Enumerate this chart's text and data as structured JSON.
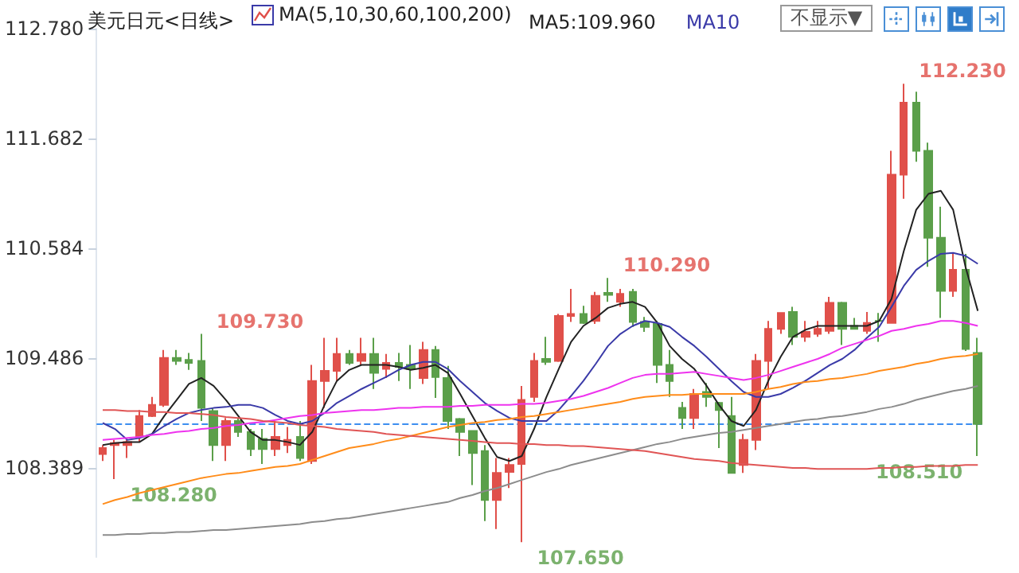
{
  "chart_data": {
    "type": "candlestick",
    "title": "美元日元<日线>",
    "legend_title": "MA(5,10,30,60,100,200)",
    "legend": "top",
    "grid": false,
    "tick_labels": "y",
    "categories": [
      null,
      null,
      null,
      null,
      null,
      null,
      null,
      null,
      null,
      null,
      null,
      null,
      null,
      null,
      null,
      null,
      null,
      null,
      null,
      null,
      null,
      null,
      null,
      null,
      null,
      null,
      null,
      null,
      null,
      null,
      null,
      null,
      null,
      null,
      null,
      null,
      null,
      null,
      null,
      null,
      null,
      null,
      null,
      null,
      null,
      null,
      null,
      null,
      null,
      null,
      null,
      null,
      null,
      null,
      null,
      null,
      null,
      null,
      null,
      null,
      null,
      null,
      null,
      null,
      null,
      null,
      null,
      null,
      null,
      null,
      null,
      null
    ],
    "ylim": [
      107.5,
      112.78
    ],
    "yticks": [
      {
        "value": 108.389,
        "label": "108.389"
      },
      {
        "value": 109.486,
        "label": "109.486"
      },
      {
        "value": 110.584,
        "label": "110.584"
      },
      {
        "value": 111.682,
        "label": "111.682"
      },
      {
        "value": 112.78,
        "label": "112.780"
      }
    ],
    "colors": [
      "#e0504a",
      "#e0504a",
      "#e0504a",
      "#e0504a",
      "#e0504a",
      "#e0504a",
      "#5b9f4a",
      "#5b9f4a",
      "#5b9f4a",
      "#5b9f4a",
      "#e0504a",
      "#5b9f4a",
      "#5b9f4a",
      "#5b9f4a",
      "#e0504a",
      "#e0504a",
      "#5b9f4a",
      "#e0504a",
      "#e0504a",
      "#e0504a",
      "#5b9f4a",
      "#e0504a",
      "#5b9f4a",
      "#e0504a",
      "#5b9f4a",
      "#5b9f4a",
      "#e0504a",
      "#5b9f4a",
      "#5b9f4a",
      "#5b9f4a",
      "#5b9f4a",
      "#5b9f4a",
      "#e0504a",
      "#e0504a",
      "#e0504a",
      "#e0504a",
      "#5b9f4a",
      "#e0504a",
      "#e0504a",
      "#5b9f4a",
      "#e0504a",
      "#5b9f4a",
      "#e0504a",
      "#5b9f4a",
      "#5b9f4a",
      "#5b9f4a",
      "#5b9f4a",
      "#5b9f4a",
      "#e0504a",
      "#5b9f4a",
      "#5b9f4a",
      "#5b9f4a",
      "#e0504a",
      "#e0504a",
      "#e0504a",
      "#e0504a",
      "#5b9f4a",
      "#e0504a",
      "#e0504a",
      "#e0504a",
      "#5b9f4a",
      "#5b9f4a",
      "#e0504a",
      "#5b9f4a",
      "#e0504a",
      "#e0504a",
      "#5b9f4a",
      "#5b9f4a",
      "#5b9f4a",
      "#e0504a",
      "#5b9f4a",
      "#5b9f4a"
    ],
    "ohlc": [
      [
        108.53,
        108.62,
        108.46,
        108.59
      ],
      [
        108.62,
        108.67,
        108.28,
        108.64
      ],
      [
        108.62,
        108.67,
        108.49,
        108.65
      ],
      [
        108.7,
        108.97,
        108.65,
        108.91
      ],
      [
        108.91,
        109.1,
        108.9,
        109.02
      ],
      [
        109.02,
        109.57,
        109.0,
        109.49
      ],
      [
        109.49,
        109.57,
        109.42,
        109.46
      ],
      [
        109.47,
        109.54,
        109.37,
        109.44
      ],
      [
        109.46,
        109.73,
        108.86,
        108.99
      ],
      [
        108.96,
        108.99,
        108.46,
        108.62
      ],
      [
        108.62,
        108.89,
        108.46,
        108.86
      ],
      [
        108.86,
        108.89,
        108.7,
        108.75
      ],
      [
        108.75,
        108.78,
        108.51,
        108.58
      ],
      [
        108.68,
        108.78,
        108.43,
        108.58
      ],
      [
        108.58,
        108.86,
        108.51,
        108.7
      ],
      [
        108.62,
        108.8,
        108.54,
        108.67
      ],
      [
        108.7,
        108.86,
        108.46,
        108.49
      ],
      [
        108.46,
        109.42,
        108.43,
        109.26
      ],
      [
        109.26,
        109.69,
        108.99,
        109.36
      ],
      [
        109.36,
        109.69,
        109.26,
        109.53
      ],
      [
        109.53,
        109.57,
        109.42,
        109.44
      ],
      [
        109.46,
        109.69,
        109.42,
        109.53
      ],
      [
        109.53,
        109.69,
        109.18,
        109.34
      ],
      [
        109.38,
        109.53,
        109.29,
        109.44
      ],
      [
        109.44,
        109.54,
        109.26,
        109.4
      ],
      [
        109.42,
        109.62,
        109.18,
        109.38
      ],
      [
        109.29,
        109.65,
        109.23,
        109.57
      ],
      [
        109.57,
        109.61,
        109.09,
        109.3
      ],
      [
        109.29,
        109.41,
        108.78,
        108.86
      ],
      [
        108.88,
        108.89,
        108.51,
        108.75
      ],
      [
        108.76,
        108.76,
        108.22,
        108.54
      ],
      [
        108.56,
        108.62,
        107.86,
        108.07
      ],
      [
        108.07,
        108.49,
        107.78,
        108.34
      ],
      [
        108.35,
        108.49,
        108.19,
        108.42
      ],
      [
        108.43,
        109.21,
        107.65,
        109.07
      ],
      [
        109.1,
        109.54,
        109.05,
        109.46
      ],
      [
        109.48,
        109.7,
        109.42,
        109.45
      ],
      [
        109.46,
        109.93,
        109.45,
        109.91
      ],
      [
        109.91,
        110.18,
        109.85,
        109.93
      ],
      [
        109.93,
        110.01,
        109.83,
        109.84
      ],
      [
        109.86,
        110.15,
        109.83,
        110.11
      ],
      [
        110.14,
        110.29,
        110.05,
        110.12
      ],
      [
        110.05,
        110.18,
        110.0,
        110.13
      ],
      [
        110.15,
        110.18,
        109.8,
        109.85
      ],
      [
        109.85,
        109.9,
        109.75,
        109.8
      ],
      [
        109.83,
        109.86,
        109.24,
        109.42
      ],
      [
        109.42,
        109.57,
        109.1,
        109.26
      ],
      [
        108.99,
        109.05,
        108.78,
        108.89
      ],
      [
        108.89,
        109.18,
        108.78,
        109.13
      ],
      [
        109.15,
        109.24,
        109.0,
        109.1
      ],
      [
        109.04,
        109.05,
        108.59,
        108.97
      ],
      [
        108.91,
        109.1,
        108.34,
        108.34
      ],
      [
        108.42,
        108.73,
        108.34,
        108.67
      ],
      [
        108.67,
        109.53,
        108.57,
        109.46
      ],
      [
        109.46,
        109.86,
        109.18,
        109.78
      ],
      [
        109.78,
        109.94,
        109.73,
        109.94
      ],
      [
        109.95,
        110.0,
        109.62,
        109.7
      ],
      [
        109.7,
        109.86,
        109.65,
        109.75
      ],
      [
        109.73,
        109.86,
        109.7,
        109.78
      ],
      [
        109.76,
        110.1,
        109.73,
        110.04
      ],
      [
        110.04,
        110.05,
        109.62,
        109.78
      ],
      [
        109.81,
        109.89,
        109.78,
        109.78
      ],
      [
        109.76,
        109.95,
        109.73,
        109.84
      ],
      [
        109.86,
        109.94,
        109.65,
        109.86
      ],
      [
        109.84,
        111.56,
        109.84,
        111.32
      ],
      [
        111.32,
        112.23,
        111.08,
        112.04
      ],
      [
        112.04,
        112.15,
        111.45,
        111.56
      ],
      [
        111.56,
        111.64,
        110.4,
        110.69
      ],
      [
        110.69,
        111.0,
        109.89,
        110.16
      ],
      [
        110.16,
        110.53,
        110.1,
        110.37
      ],
      [
        110.37,
        110.53,
        109.56,
        109.58
      ],
      [
        109.54,
        109.69,
        108.51,
        108.83
      ]
    ],
    "series": [
      {
        "type": "line",
        "name": "MA5:109.960",
        "color": "#222222",
        "values": [
          108.62,
          108.64,
          108.65,
          108.65,
          108.73,
          108.91,
          109.07,
          109.23,
          109.29,
          109.21,
          109.07,
          108.91,
          108.75,
          108.67,
          108.67,
          108.65,
          108.62,
          108.75,
          109.02,
          109.26,
          109.37,
          109.42,
          109.42,
          109.42,
          109.4,
          109.37,
          109.39,
          109.42,
          109.34,
          109.13,
          108.91,
          108.69,
          108.5,
          108.46,
          108.51,
          108.78,
          109.1,
          109.38,
          109.65,
          109.81,
          109.89,
          109.99,
          110.03,
          110.05,
          110.0,
          109.84,
          109.61,
          109.48,
          109.38,
          109.21,
          109.02,
          108.86,
          108.81,
          108.97,
          109.26,
          109.5,
          109.7,
          109.77,
          109.81,
          109.81,
          109.81,
          109.81,
          109.81,
          109.86,
          110.08,
          110.56,
          110.97,
          111.13,
          111.16,
          110.97,
          110.4,
          109.96
        ]
      },
      {
        "type": "line",
        "name": "MA10",
        "color": "#3a3aa8",
        "values": [
          108.84,
          108.78,
          108.67,
          108.69,
          108.73,
          108.81,
          108.88,
          108.94,
          108.97,
          108.99,
          109.0,
          109.02,
          109.02,
          108.99,
          108.92,
          108.86,
          108.83,
          108.86,
          108.94,
          109.04,
          109.11,
          109.18,
          109.24,
          109.3,
          109.37,
          109.42,
          109.45,
          109.45,
          109.38,
          109.26,
          109.15,
          109.04,
          108.96,
          108.89,
          108.86,
          108.86,
          108.86,
          108.97,
          109.11,
          109.26,
          109.43,
          109.61,
          109.73,
          109.81,
          109.86,
          109.84,
          109.8,
          109.7,
          109.61,
          109.5,
          109.38,
          109.26,
          109.15,
          109.1,
          109.1,
          109.13,
          109.19,
          109.26,
          109.34,
          109.42,
          109.48,
          109.57,
          109.69,
          109.8,
          110.0,
          110.21,
          110.37,
          110.46,
          110.53,
          110.54,
          110.51,
          110.43
        ]
      },
      {
        "type": "line",
        "color": "#ee33ee",
        "values": [
          108.67,
          108.68,
          108.69,
          108.7,
          108.72,
          108.73,
          108.75,
          108.76,
          108.78,
          108.79,
          108.81,
          108.82,
          108.84,
          108.85,
          108.87,
          108.89,
          108.91,
          108.92,
          108.94,
          108.95,
          108.96,
          108.97,
          108.97,
          108.98,
          108.99,
          108.99,
          109.0,
          109.0,
          109.0,
          109.01,
          109.01,
          109.02,
          109.02,
          109.02,
          109.03,
          109.03,
          109.04,
          109.06,
          109.08,
          109.11,
          109.15,
          109.19,
          109.24,
          109.29,
          109.32,
          109.33,
          109.33,
          109.34,
          109.35,
          109.33,
          109.31,
          109.29,
          109.27,
          109.29,
          109.32,
          109.36,
          109.4,
          109.44,
          109.48,
          109.53,
          109.59,
          109.63,
          109.67,
          109.71,
          109.76,
          109.78,
          109.81,
          109.83,
          109.86,
          109.86,
          109.84,
          109.81
        ]
      },
      {
        "type": "line",
        "color": "#ff8c1a",
        "values": [
          108.03,
          108.07,
          108.1,
          108.14,
          108.17,
          108.2,
          108.23,
          108.26,
          108.29,
          108.31,
          108.33,
          108.34,
          108.36,
          108.38,
          108.4,
          108.41,
          108.43,
          108.47,
          108.51,
          108.55,
          108.59,
          108.61,
          108.63,
          108.66,
          108.68,
          108.71,
          108.74,
          108.77,
          108.8,
          108.82,
          108.84,
          108.85,
          108.87,
          108.88,
          108.9,
          108.91,
          108.93,
          108.95,
          108.97,
          108.99,
          109.01,
          109.03,
          109.05,
          109.08,
          109.1,
          109.11,
          109.12,
          109.12,
          109.13,
          109.13,
          109.13,
          109.13,
          109.13,
          109.15,
          109.18,
          109.2,
          109.23,
          109.25,
          109.26,
          109.28,
          109.29,
          109.31,
          109.33,
          109.36,
          109.38,
          109.4,
          109.43,
          109.45,
          109.48,
          109.5,
          109.51,
          109.53
        ]
      },
      {
        "type": "line",
        "color": "#8c8c8c",
        "values": [
          107.72,
          107.72,
          107.73,
          107.73,
          107.74,
          107.74,
          107.75,
          107.75,
          107.76,
          107.77,
          107.77,
          107.78,
          107.79,
          107.8,
          107.81,
          107.82,
          107.83,
          107.85,
          107.86,
          107.88,
          107.89,
          107.91,
          107.93,
          107.95,
          107.97,
          107.99,
          108.01,
          108.03,
          108.05,
          108.09,
          108.12,
          108.16,
          108.19,
          108.23,
          108.27,
          108.31,
          108.35,
          108.38,
          108.42,
          108.45,
          108.48,
          108.51,
          108.54,
          108.57,
          108.6,
          108.63,
          108.65,
          108.68,
          108.7,
          108.72,
          108.74,
          108.75,
          108.77,
          108.79,
          108.81,
          108.83,
          108.85,
          108.87,
          108.88,
          108.9,
          108.91,
          108.93,
          108.95,
          108.98,
          109.0,
          109.03,
          109.07,
          109.1,
          109.13,
          109.16,
          109.18,
          109.21
        ]
      },
      {
        "type": "line",
        "color": "#e05555",
        "values": [
          108.97,
          108.97,
          108.96,
          108.96,
          108.95,
          108.95,
          108.94,
          108.94,
          108.93,
          108.92,
          108.9,
          108.89,
          108.88,
          108.86,
          108.85,
          108.84,
          108.82,
          108.81,
          108.8,
          108.78,
          108.77,
          108.76,
          108.75,
          108.73,
          108.72,
          108.71,
          108.7,
          108.69,
          108.68,
          108.67,
          108.66,
          108.65,
          108.64,
          108.64,
          108.63,
          108.63,
          108.62,
          108.62,
          108.61,
          108.61,
          108.6,
          108.59,
          108.58,
          108.57,
          108.56,
          108.54,
          108.52,
          108.5,
          108.48,
          108.47,
          108.46,
          108.44,
          108.43,
          108.42,
          108.41,
          108.4,
          108.39,
          108.39,
          108.38,
          108.38,
          108.38,
          108.38,
          108.38,
          108.39,
          108.39,
          108.4,
          108.4,
          108.41,
          108.41,
          108.41,
          108.42,
          108.42
        ]
      }
    ],
    "ref_lines": [
      {
        "axis": "y",
        "value": 108.83,
        "color": "#3d8ef0",
        "line_style": "dashed"
      }
    ],
    "annotations": [
      "不显示▼",
      "109.730",
      "108.280",
      "110.290",
      "107.650",
      "112.230",
      "108.510"
    ]
  }
}
